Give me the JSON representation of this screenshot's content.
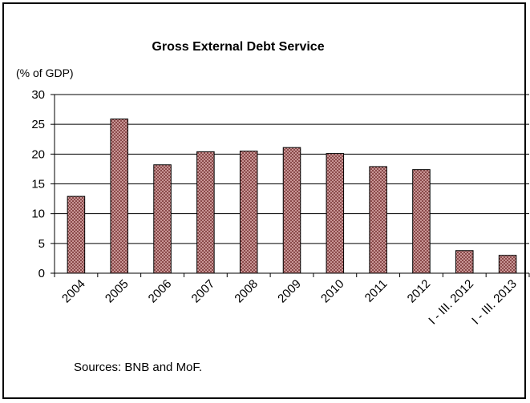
{
  "chart_data": {
    "type": "bar",
    "title": "Gross External Debt Service",
    "unit_label": "(% of GDP)",
    "xlabel": "",
    "ylabel": "",
    "categories": [
      "2004",
      "2005",
      "2006",
      "2007",
      "2008",
      "2009",
      "2010",
      "2011",
      "2012",
      "I - III. 2012",
      "I - III. 2013"
    ],
    "values": [
      12.9,
      25.9,
      18.2,
      20.4,
      20.5,
      21.1,
      20.1,
      17.9,
      17.4,
      3.8,
      3.0
    ],
    "ylim": [
      0,
      30
    ],
    "yticks": [
      0,
      5,
      10,
      15,
      20,
      25,
      30
    ],
    "grid": true,
    "legend": "none",
    "bar_fill": "#c89595",
    "bar_stroke": "#000000",
    "source_note": "Sources: BNB and MoF."
  }
}
